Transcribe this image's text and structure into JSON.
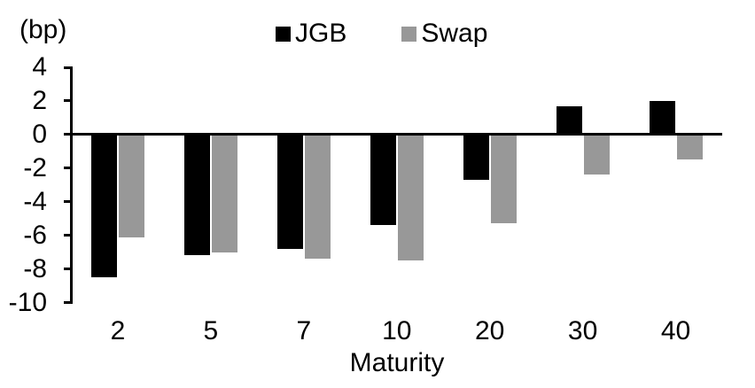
{
  "chart_data": {
    "type": "bar",
    "unit_label": "(bp)",
    "xlabel": "Maturity",
    "categories": [
      "2",
      "5",
      "7",
      "10",
      "20",
      "30",
      "40"
    ],
    "series": [
      {
        "name": "JGB",
        "color": "#000000",
        "values": [
          -8.5,
          -7.2,
          -6.8,
          -5.4,
          -2.7,
          1.7,
          2.0
        ]
      },
      {
        "name": "Swap",
        "color": "#989898",
        "values": [
          -6.1,
          -7.0,
          -7.4,
          -7.5,
          -5.3,
          -2.4,
          -1.5
        ]
      }
    ],
    "y_ticks": [
      4,
      2,
      0,
      -2,
      -4,
      -6,
      -8,
      -10
    ],
    "ylim": [
      -10,
      4
    ],
    "legend_position": "top-center",
    "grid": false,
    "axis_color": "#000000",
    "background_color": "#ffffff"
  }
}
